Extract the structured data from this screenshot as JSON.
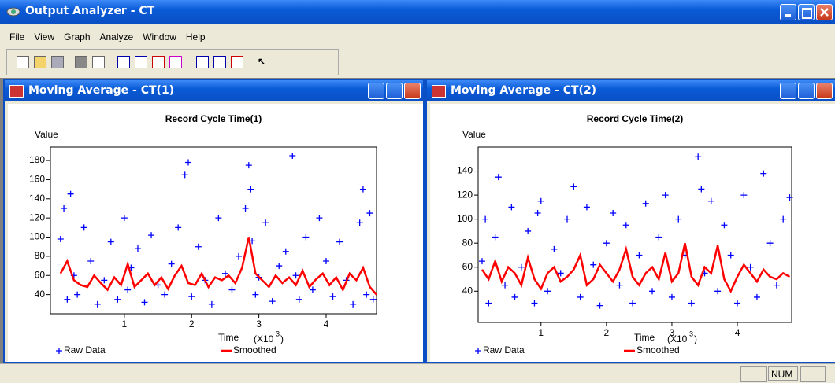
{
  "app": {
    "title": "Output Analyzer - CT"
  },
  "menu": [
    "File",
    "View",
    "Graph",
    "Analyze",
    "Window",
    "Help"
  ],
  "windows": [
    {
      "title": "Moving Average - CT(1)",
      "chart": {
        "type": "scatter",
        "title": "Record Cycle Time(1)",
        "y_label": "Value",
        "x_label": "Time",
        "x_unit": {
          "base": "(X10",
          "exponent": "3",
          "close": ")"
        },
        "xlim": [
          -0.1,
          4.75
        ],
        "ylim": [
          20,
          194
        ],
        "xticks": [
          1,
          2,
          3,
          4
        ],
        "yticks": [
          40,
          60,
          80,
          100,
          120,
          140,
          160,
          180
        ],
        "series": [
          {
            "name": "Raw Data",
            "color": "#0000ff",
            "type": "scatter",
            "x": [
              0.05,
              0.1,
              0.15,
              0.2,
              0.25,
              0.3,
              0.4,
              0.5,
              0.6,
              0.7,
              0.8,
              0.9,
              1.0,
              1.05,
              1.1,
              1.2,
              1.3,
              1.4,
              1.5,
              1.6,
              1.7,
              1.8,
              1.9,
              1.95,
              2.0,
              2.1,
              2.2,
              2.3,
              2.4,
              2.5,
              2.6,
              2.7,
              2.8,
              2.85,
              2.88,
              2.9,
              2.95,
              3.0,
              3.1,
              3.2,
              3.3,
              3.4,
              3.5,
              3.55,
              3.6,
              3.7,
              3.8,
              3.9,
              4.0,
              4.1,
              4.2,
              4.3,
              4.4,
              4.5,
              4.55,
              4.6,
              4.65,
              4.7
            ],
            "values": [
              98,
              130,
              35,
              145,
              60,
              40,
              110,
              75,
              30,
              55,
              95,
              35,
              120,
              45,
              68,
              88,
              32,
              102,
              50,
              40,
              72,
              110,
              165,
              178,
              38,
              90,
              55,
              30,
              120,
              62,
              45,
              80,
              130,
              175,
              150,
              96,
              40,
              58,
              115,
              33,
              70,
              85,
              185,
              60,
              35,
              100,
              45,
              120,
              75,
              38,
              95,
              55,
              30,
              115,
              150,
              40,
              125,
              35
            ]
          },
          {
            "name": "Smoothed",
            "color": "#ff0000",
            "type": "line",
            "x": [
              0.05,
              0.15,
              0.25,
              0.35,
              0.45,
              0.55,
              0.65,
              0.75,
              0.85,
              0.95,
              1.05,
              1.15,
              1.25,
              1.35,
              1.45,
              1.55,
              1.65,
              1.75,
              1.85,
              1.95,
              2.05,
              2.15,
              2.25,
              2.35,
              2.45,
              2.55,
              2.65,
              2.75,
              2.85,
              2.95,
              3.05,
              3.15,
              3.25,
              3.35,
              3.45,
              3.55,
              3.65,
              3.75,
              3.85,
              3.95,
              4.05,
              4.15,
              4.25,
              4.35,
              4.45,
              4.55,
              4.65,
              4.75
            ],
            "values": [
              62,
              75,
              55,
              50,
              48,
              60,
              52,
              45,
              58,
              50,
              72,
              48,
              55,
              62,
              50,
              58,
              46,
              60,
              70,
              52,
              50,
              62,
              48,
              58,
              55,
              60,
              52,
              68,
              100,
              62,
              55,
              48,
              60,
              52,
              58,
              50,
              65,
              48,
              56,
              62,
              50,
              58,
              45,
              62,
              55,
              68,
              48,
              40
            ]
          }
        ]
      }
    },
    {
      "title": "Moving Average - CT(2)",
      "chart": {
        "type": "scatter",
        "title": "Record Cycle Time(2)",
        "y_label": "Value",
        "x_label": "Time",
        "x_unit": {
          "base": "(X10",
          "exponent": "3",
          "close": ")"
        },
        "xlim": [
          0.04,
          4.83
        ],
        "ylim": [
          14,
          160
        ],
        "xticks": [
          1,
          2,
          3,
          4
        ],
        "yticks": [
          40,
          60,
          80,
          100,
          120,
          140
        ],
        "series": [
          {
            "name": "Raw Data",
            "color": "#0000ff",
            "type": "scatter",
            "x": [
              0.1,
              0.15,
              0.2,
              0.3,
              0.35,
              0.45,
              0.55,
              0.6,
              0.7,
              0.8,
              0.9,
              0.95,
              1.0,
              1.1,
              1.2,
              1.3,
              1.4,
              1.5,
              1.6,
              1.7,
              1.8,
              1.9,
              2.0,
              2.1,
              2.2,
              2.3,
              2.4,
              2.5,
              2.6,
              2.7,
              2.8,
              2.9,
              3.0,
              3.1,
              3.2,
              3.3,
              3.4,
              3.45,
              3.5,
              3.6,
              3.7,
              3.8,
              3.9,
              4.0,
              4.1,
              4.2,
              4.3,
              4.4,
              4.5,
              4.6,
              4.7,
              4.8
            ],
            "values": [
              65,
              100,
              30,
              85,
              135,
              45,
              110,
              35,
              60,
              90,
              30,
              105,
              115,
              40,
              75,
              55,
              100,
              127,
              35,
              110,
              62,
              28,
              80,
              105,
              45,
              95,
              30,
              70,
              113,
              40,
              85,
              120,
              35,
              100,
              70,
              30,
              152,
              125,
              55,
              115,
              40,
              95,
              70,
              30,
              120,
              60,
              35,
              138,
              80,
              45,
              100,
              118
            ]
          },
          {
            "name": "Smoothed",
            "color": "#ff0000",
            "type": "line",
            "x": [
              0.1,
              0.2,
              0.3,
              0.4,
              0.5,
              0.6,
              0.7,
              0.8,
              0.9,
              1.0,
              1.1,
              1.2,
              1.3,
              1.4,
              1.5,
              1.6,
              1.7,
              1.8,
              1.9,
              2.0,
              2.1,
              2.2,
              2.3,
              2.4,
              2.5,
              2.6,
              2.7,
              2.8,
              2.9,
              3.0,
              3.1,
              3.2,
              3.3,
              3.4,
              3.5,
              3.6,
              3.7,
              3.8,
              3.9,
              4.0,
              4.1,
              4.2,
              4.3,
              4.4,
              4.5,
              4.6,
              4.7,
              4.8
            ],
            "values": [
              58,
              50,
              65,
              48,
              60,
              55,
              45,
              68,
              50,
              42,
              55,
              60,
              48,
              52,
              58,
              70,
              45,
              50,
              62,
              55,
              48,
              58,
              75,
              52,
              45,
              55,
              60,
              50,
              72,
              48,
              55,
              80,
              52,
              45,
              60,
              55,
              78,
              50,
              40,
              52,
              62,
              55,
              48,
              58,
              52,
              50,
              55,
              52
            ]
          }
        ]
      }
    }
  ],
  "status": {
    "num": "NUM"
  }
}
